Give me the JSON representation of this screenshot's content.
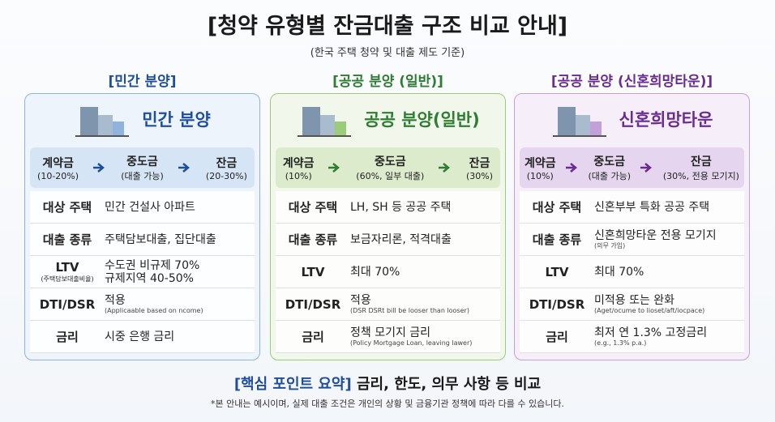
{
  "header": {
    "title": "[청약 유형별 잔금대출 구조 비교 안내]",
    "subtitle": "(한국 주택 청약 및 대출 제도 기준)"
  },
  "columns": [
    {
      "section": "[민간 분양]",
      "title": "민간 분양",
      "color": "#1f4e9a",
      "bg": "#eef4fb",
      "band": "#d6e5f5",
      "border": "#8fb3dd",
      "steps": [
        {
          "label": "계약금",
          "sub": "(10-20%)"
        },
        {
          "label": "중도금",
          "sub": "(대출 가능)"
        },
        {
          "label": "잔금",
          "sub": "(20-30%)"
        }
      ],
      "rows": [
        {
          "label": "대상 주택",
          "value": [
            "민간 건설사 아파트"
          ]
        },
        {
          "label": "대출 종류",
          "value": [
            "주택담보대출, 집단대출"
          ]
        },
        {
          "label": "LTV",
          "sublabel": "(주택담보대출비율)",
          "value": [
            "수도권 비규제 70%",
            "규제지역 40-50%"
          ]
        },
        {
          "label": "DTI/DSR",
          "value": [
            "적용"
          ],
          "note": "(Applicaable based on ncome)"
        },
        {
          "label": "금리",
          "value": [
            "시중 은행 금리"
          ]
        }
      ]
    },
    {
      "section": "[공공 분양 (일반)]",
      "title": "공공 분양(일반)",
      "color": "#2e7d32",
      "bg": "#f1f7ea",
      "band": "#dcebcc",
      "border": "#9ccc7a",
      "steps": [
        {
          "label": "계약금",
          "sub": "(10%)"
        },
        {
          "label": "중도금",
          "sub": "(60%, 일부 대출)"
        },
        {
          "label": "잔금",
          "sub": "(30%)"
        }
      ],
      "rows": [
        {
          "label": "대상 주택",
          "value": [
            "LH, SH 등 공공 주택"
          ]
        },
        {
          "label": "대출 종류",
          "value": [
            "보금자리론, 적격대출"
          ]
        },
        {
          "label": "LTV",
          "value": [
            "최대 70%"
          ]
        },
        {
          "label": "DTI/DSR",
          "value": [
            "적용"
          ],
          "note": "(DSR DSRt bill be looser than looser)"
        },
        {
          "label": "금리",
          "value": [
            "정책 모기지 금리"
          ],
          "note": "(Policy Mortgage Loan, leaving lawer)"
        }
      ]
    },
    {
      "section": "[공공 분양 (신혼희망타운)]",
      "title": "신혼희망타운",
      "color": "#6a2c91",
      "bg": "#f6eff9",
      "band": "#e6d5ef",
      "border": "#c2a1d8",
      "steps": [
        {
          "label": "계약금",
          "sub": "(10%)"
        },
        {
          "label": "중도금",
          "sub": "(대출 가능)"
        },
        {
          "label": "잔금",
          "sub": "(30%, 전용 모기지)"
        }
      ],
      "rows": [
        {
          "label": "대상 주택",
          "value": [
            "신혼부부 특화 공공 주택"
          ]
        },
        {
          "label": "대출 종류",
          "value": [
            "신혼희망타운 전용 모기지"
          ],
          "note": "(의무 가입)"
        },
        {
          "label": "LTV",
          "value": [
            "최대 70%"
          ]
        },
        {
          "label": "DTI/DSR",
          "value": [
            "미적용 또는 완화"
          ],
          "note": "(Aget/ocume to lioset/aft/iocpace)"
        },
        {
          "label": "금리",
          "value": [
            "최저 연 1.3% 고정금리"
          ],
          "note": "(e.g., 1.3% p.a.)"
        }
      ]
    }
  ],
  "footer": {
    "summary_label": "[핵심 포인트 요약]",
    "summary_text": "금리, 한도, 의무 사항 등 비교",
    "note": "*본 안내는 예시이며, 실제 대출 조건은 개인의 상황 및 금융기관 정책에 따라 다를 수 있습니다."
  }
}
